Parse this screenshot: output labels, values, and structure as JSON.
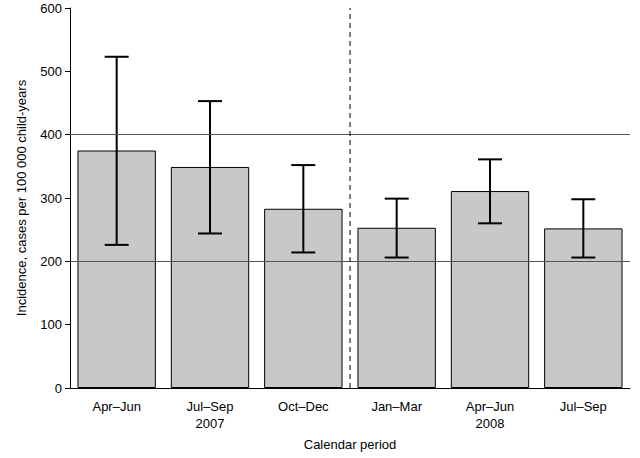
{
  "chart_data": {
    "type": "bar",
    "categories": [
      "Apr–Jun",
      "Jul–Sep",
      "Oct–Dec",
      "Jan–Mar",
      "Apr–Jun",
      "Jul–Sep"
    ],
    "groups": [
      {
        "label": "2007",
        "size": 3
      },
      {
        "label": "2008",
        "size": 3
      }
    ],
    "values": [
      375,
      349,
      283,
      253,
      311,
      252
    ],
    "lower": [
      226,
      244,
      214,
      206,
      260,
      206
    ],
    "upper": [
      523,
      453,
      352,
      299,
      361,
      298
    ],
    "color": "#c8c8c8",
    "x_label": "Calendar period",
    "y_label": "Incidence, cases per 100 000 child-years",
    "ylim": [
      0,
      600
    ],
    "yticks": [
      0,
      100,
      200,
      300,
      400,
      500,
      600
    ],
    "reference_lines": [
      200,
      400
    ],
    "grid": false
  }
}
